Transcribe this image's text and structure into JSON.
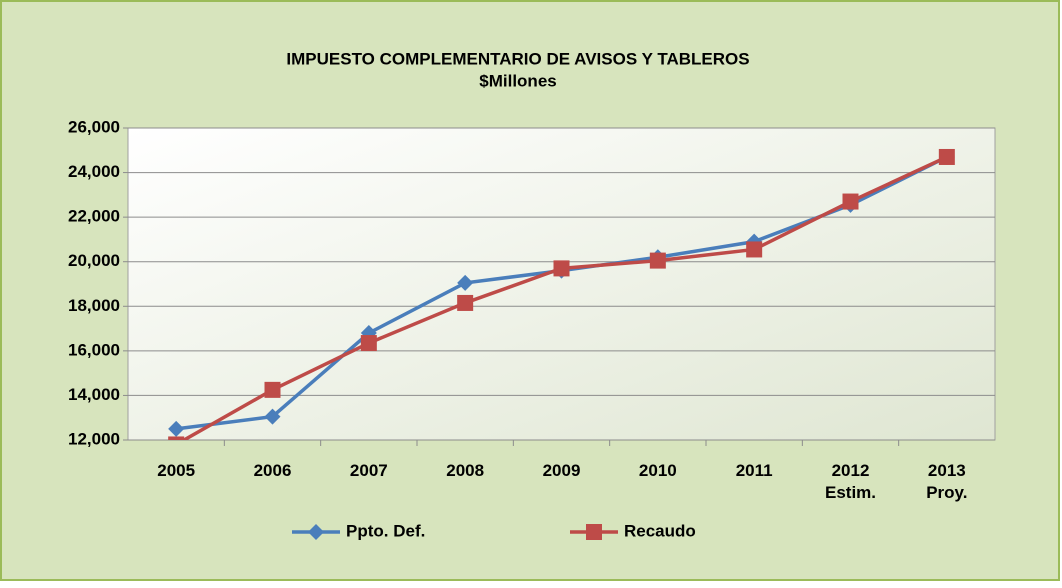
{
  "chart_data": {
    "type": "line",
    "title": "IMPUESTO COMPLEMENTARIO DE AVISOS Y TABLEROS",
    "subtitle": "$Millones",
    "categories": [
      "2005",
      "2006",
      "2007",
      "2008",
      "2009",
      "2010",
      "2011",
      "2012\nEstim.",
      "2013\nProy."
    ],
    "series": [
      {
        "name": "Ppto. Def.",
        "color": "#4a7ebb",
        "marker": "diamond",
        "values": [
          12500,
          13050,
          16800,
          19050,
          19600,
          20200,
          20900,
          22550,
          24700
        ]
      },
      {
        "name": "Recaudo",
        "color": "#be4b48",
        "marker": "square",
        "values": [
          11800,
          14250,
          16350,
          18150,
          19700,
          20050,
          20550,
          22700,
          24700
        ]
      }
    ],
    "ylim": [
      12000,
      26000
    ],
    "yticks": [
      {
        "value": 12000,
        "label": "12,000"
      },
      {
        "value": 14000,
        "label": "14,000"
      },
      {
        "value": 16000,
        "label": "16,000"
      },
      {
        "value": 18000,
        "label": "18,000"
      },
      {
        "value": 20000,
        "label": "20,000"
      },
      {
        "value": 22000,
        "label": "22,000"
      },
      {
        "value": 24000,
        "label": "24,000"
      },
      {
        "value": 26000,
        "label": "26,000"
      }
    ],
    "grid": true,
    "legend": "bottom"
  }
}
